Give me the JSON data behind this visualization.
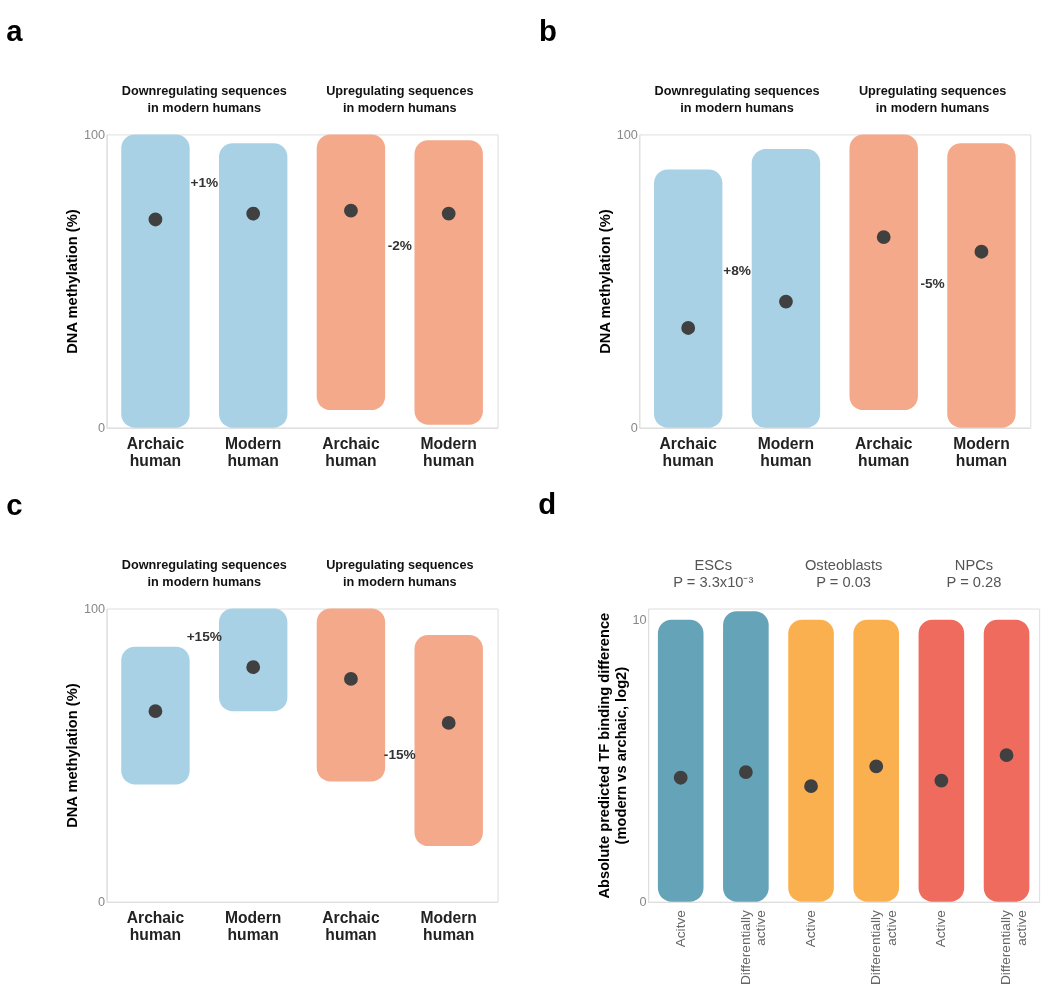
{
  "chart_data": [
    {
      "type": "bar",
      "title": "a",
      "ylabel": "DNA methylation (%)",
      "categories": [
        "Archaic human",
        "Modern human",
        "Archaic human",
        "Modern human"
      ],
      "ylim": [
        0,
        100
      ],
      "yticks": [
        0,
        100
      ],
      "marker": "circle",
      "annotations": [
        "Downregulating sequences\nin modern humans",
        "Upregulating sequences\nin modern humans",
        "+1%",
        "-2%"
      ],
      "series": [
        {
          "type": "bar",
          "base": [
            0,
            0,
            6,
            1
          ],
          "values": [
            100,
            97,
            94,
            97
          ],
          "colors": [
            "#a9d1e6",
            "#a9d1e6",
            "#f4a98a",
            "#f4a98a"
          ]
        },
        {
          "type": "scatter",
          "color": "#404040",
          "values": [
            71,
            73,
            74,
            73
          ]
        }
      ]
    },
    {
      "type": "bar",
      "title": "b",
      "ylabel": "DNA methylation (%)",
      "categories": [
        "Archaic human",
        "Modern human",
        "Archaic human",
        "Modern human"
      ],
      "ylim": [
        0,
        100
      ],
      "yticks": [
        0,
        100
      ],
      "marker": "circle",
      "annotations": [
        "Downregulating sequences\nin modern humans",
        "Upregulating sequences\nin modern humans",
        "+8%",
        "-5%"
      ],
      "series": [
        {
          "type": "bar",
          "base": [
            0,
            0,
            6,
            0
          ],
          "values": [
            88,
            95,
            94,
            97
          ],
          "colors": [
            "#a9d1e6",
            "#a9d1e6",
            "#f4a98a",
            "#f4a98a"
          ]
        },
        {
          "type": "scatter",
          "color": "#404040",
          "values": [
            34,
            43,
            65,
            60
          ]
        }
      ]
    },
    {
      "type": "bar",
      "title": "c",
      "ylabel": "DNA methylation (%)",
      "categories": [
        "Archaic human",
        "Modern human",
        "Archaic human",
        "Modern human"
      ],
      "ylim": [
        0,
        100
      ],
      "yticks": [
        0,
        100
      ],
      "marker": "circle",
      "annotations": [
        "Downregulating sequences\nin modern humans",
        "Upregulating sequences\nin modern humans",
        "+15%",
        "-15%"
      ],
      "series": [
        {
          "type": "bar",
          "base": [
            40,
            65,
            41,
            19
          ],
          "values": [
            47,
            35,
            59,
            72
          ],
          "colors": [
            "#a9d1e6",
            "#a9d1e6",
            "#f4a98a",
            "#f4a98a"
          ]
        },
        {
          "type": "scatter",
          "color": "#404040",
          "values": [
            65,
            80,
            76,
            61
          ]
        }
      ]
    },
    {
      "type": "bar",
      "title": "d",
      "ylabel": "Absolute predicted TF binding difference\n(modern vs archaic, log2)",
      "categories": [
        "Acitve",
        "Differentially active",
        "Active",
        "Differentially active",
        "Active",
        "Differentially active"
      ],
      "ylim": [
        0,
        10.4
      ],
      "yticks": [
        0,
        10
      ],
      "marker": "circle",
      "annotations": [
        "ESCs\nP = 3.3x10⁻³",
        "Osteoblasts\nP = 0.03",
        "NPCs\nP = 0.28"
      ],
      "series": [
        {
          "type": "bar",
          "values": [
            10,
            10.3,
            10,
            10,
            10,
            10
          ],
          "colors": [
            "#65a3b8",
            "#65a3b8",
            "#fbb04f",
            "#fbb04f",
            "#ef6b5e",
            "#ef6b5e"
          ]
        },
        {
          "type": "scatter",
          "color": "#404040",
          "values": [
            4.4,
            4.6,
            4.1,
            4.8,
            4.3,
            5.2
          ]
        }
      ]
    }
  ]
}
